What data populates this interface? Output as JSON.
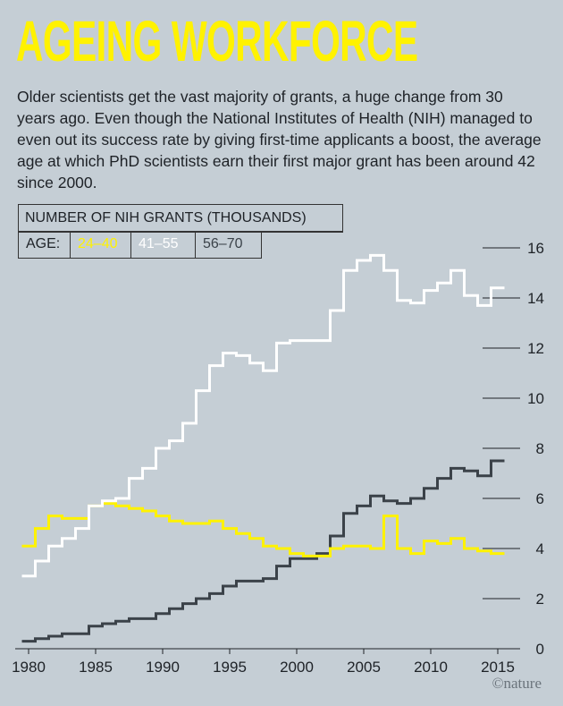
{
  "header": {
    "title": "AGEING WORKFORCE",
    "description": "Older scientists get the vast majority of grants, a huge change from 30 years ago. Even though the National Institutes of Health (NIH) managed to even out its success rate by giving first-time applicants a boost, the average age at which PhD scientists earn their first major grant has been around 42 since 2000."
  },
  "legend": {
    "title": "NUMBER OF NIH GRANTS (THOUSANDS)",
    "age_label": "AGE:",
    "colors": {
      "24–40": "#fff200",
      "41–55": "#ffffff",
      "56–70": "#3b4249"
    }
  },
  "credit": "©nature",
  "chart_data": {
    "type": "line",
    "step": true,
    "title": "NUMBER OF NIH GRANTS (THOUSANDS)",
    "x": [
      1980,
      1981,
      1982,
      1983,
      1984,
      1985,
      1986,
      1987,
      1988,
      1989,
      1990,
      1991,
      1992,
      1993,
      1994,
      1995,
      1996,
      1997,
      1998,
      1999,
      2000,
      2001,
      2002,
      2003,
      2004,
      2005,
      2006,
      2007,
      2008,
      2009,
      2010,
      2011,
      2012,
      2013,
      2014,
      2015
    ],
    "xlim": [
      1979,
      2016
    ],
    "ylim": [
      0,
      16
    ],
    "xticks": [
      1980,
      1985,
      1990,
      1995,
      2000,
      2005,
      2010,
      2015
    ],
    "yticks": [
      0,
      2,
      4,
      6,
      8,
      10,
      12,
      14,
      16
    ],
    "y_axis_position": "right",
    "grid": false,
    "series": [
      {
        "name": "24–40",
        "color": "#fff200",
        "values": [
          4.1,
          4.8,
          5.3,
          5.2,
          5.2,
          5.7,
          5.8,
          5.7,
          5.6,
          5.5,
          5.3,
          5.1,
          5.0,
          5.0,
          5.1,
          4.8,
          4.6,
          4.4,
          4.1,
          4.0,
          3.8,
          3.7,
          3.7,
          4.0,
          4.1,
          4.1,
          4.0,
          5.3,
          4.0,
          3.8,
          4.3,
          4.2,
          4.4,
          4.0,
          3.9,
          3.8
        ]
      },
      {
        "name": "41–55",
        "color": "#ffffff",
        "values": [
          2.9,
          3.5,
          4.1,
          4.4,
          4.8,
          5.7,
          5.9,
          6.0,
          6.8,
          7.2,
          8.0,
          8.3,
          9.0,
          10.3,
          11.3,
          11.8,
          11.7,
          11.4,
          11.1,
          12.2,
          12.3,
          12.3,
          12.3,
          13.5,
          15.1,
          15.5,
          15.7,
          15.1,
          13.9,
          13.8,
          14.3,
          14.6,
          15.1,
          14.1,
          13.7,
          14.4
        ]
      },
      {
        "name": "56–70",
        "color": "#3b4249",
        "values": [
          0.3,
          0.4,
          0.5,
          0.6,
          0.6,
          0.9,
          1.0,
          1.1,
          1.2,
          1.2,
          1.4,
          1.6,
          1.8,
          2.0,
          2.2,
          2.5,
          2.7,
          2.7,
          2.8,
          3.3,
          3.6,
          3.6,
          3.8,
          4.5,
          5.4,
          5.7,
          6.1,
          5.9,
          5.8,
          6.0,
          6.4,
          6.8,
          7.2,
          7.1,
          6.9,
          7.5
        ]
      }
    ]
  }
}
